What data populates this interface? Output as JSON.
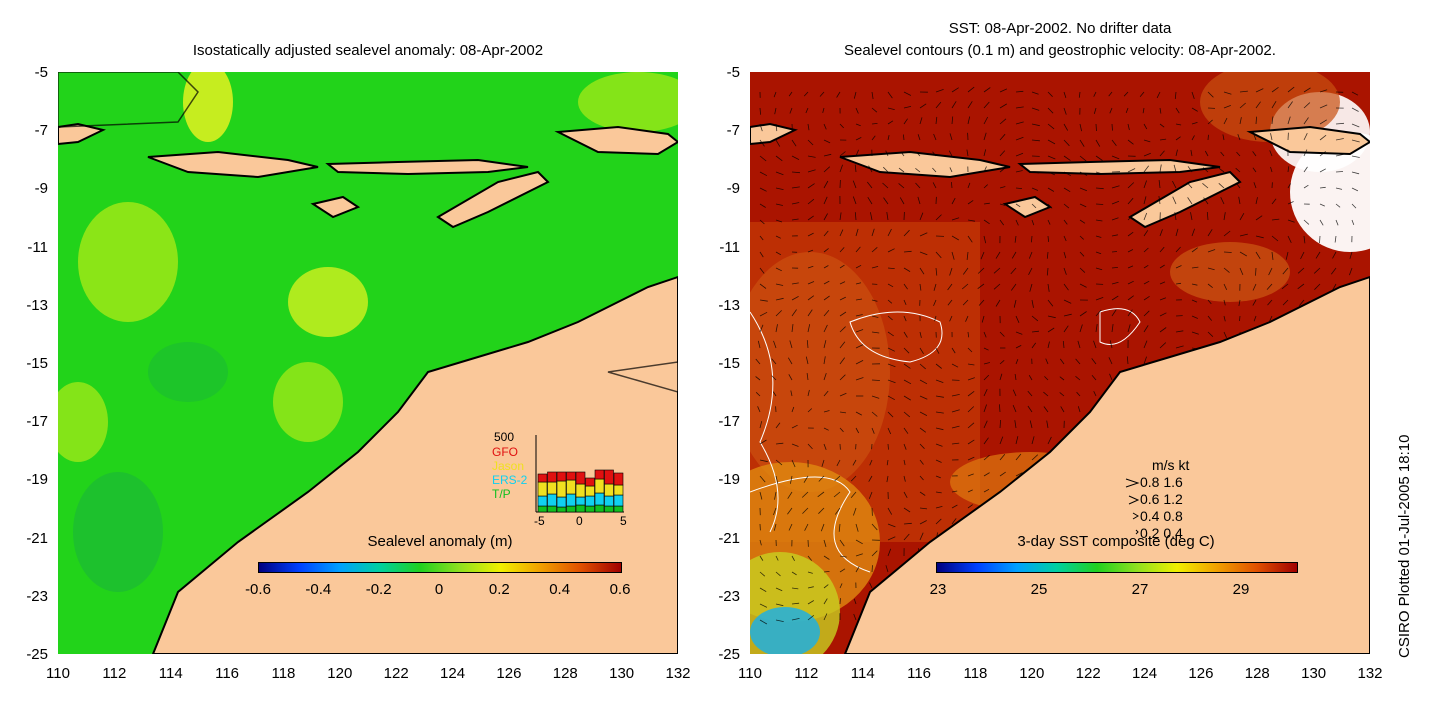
{
  "left_panel": {
    "title": "Isostatically adjusted sealevel anomaly: 08-Apr-2002",
    "colorbar_label": "Sealevel anomaly (m)",
    "colorbar_ticks": [
      "-0.6",
      "-0.4",
      "-0.2",
      "0",
      "0.2",
      "0.4",
      "0.6"
    ],
    "histogram": {
      "ytop_label": "500",
      "x_labels": [
        "-5",
        "0",
        "5"
      ],
      "legend": [
        {
          "name": "GFO",
          "color": "#e01010"
        },
        {
          "name": "Jason",
          "color": "#f0e020"
        },
        {
          "name": "ERS-2",
          "color": "#10d0f0"
        },
        {
          "name": "T/P",
          "color": "#10c020"
        }
      ]
    }
  },
  "right_panel": {
    "title_line1": "SST: 08-Apr-2002. No drifter data",
    "title_line2": "Sealevel contours (0.1 m) and geostrophic velocity: 08-Apr-2002.",
    "colorbar_label": "3-day SST composite (deg C)",
    "colorbar_ticks": [
      "23",
      "25",
      "27",
      "29"
    ],
    "velocity_legend": {
      "header": "m/s  kt",
      "rows": [
        "0.8  1.6",
        "0.6  1.2",
        "0.4  0.8",
        "0.2  0.4"
      ]
    }
  },
  "axes": {
    "y_ticks": [
      "-5",
      "-7",
      "-9",
      "-11",
      "-13",
      "-15",
      "-17",
      "-19",
      "-21",
      "-23",
      "-25"
    ],
    "x_ticks": [
      "110",
      "112",
      "114",
      "116",
      "118",
      "120",
      "122",
      "124",
      "126",
      "128",
      "130",
      "132"
    ]
  },
  "side_note": "CSIRO Plotted 01-Jul-2005 18:10",
  "colors": {
    "land": "#fac89a",
    "ocean_left": "#22d31a",
    "ocean_right": "#aa1400"
  }
}
